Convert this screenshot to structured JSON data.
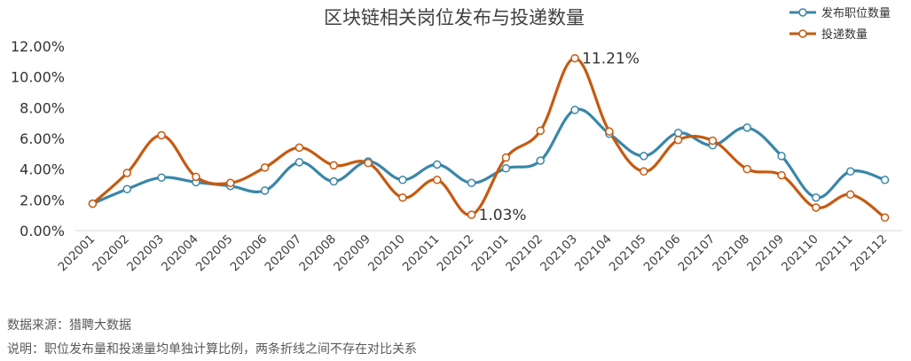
{
  "chart_data": {
    "type": "line",
    "title": "区块链相关岗位发布与投递数量",
    "categories": [
      "202001",
      "202002",
      "202003",
      "202004",
      "202005",
      "202006",
      "202007",
      "202008",
      "202009",
      "202010",
      "202011",
      "202012",
      "202101",
      "202102",
      "202103",
      "202104",
      "202105",
      "202106",
      "202107",
      "202108",
      "202109",
      "202110",
      "202111",
      "202112"
    ],
    "series": [
      {
        "name": "发布职位数量",
        "color": "#3a86a8",
        "values": [
          1.75,
          2.7,
          3.45,
          3.15,
          2.9,
          2.6,
          4.45,
          3.2,
          4.5,
          3.3,
          4.3,
          3.1,
          4.05,
          4.55,
          7.85,
          6.3,
          4.85,
          6.35,
          5.55,
          6.7,
          4.85,
          2.15,
          3.85,
          3.3
        ]
      },
      {
        "name": "投递数量",
        "color": "#c55a11",
        "values": [
          1.75,
          3.75,
          6.2,
          3.5,
          3.1,
          4.1,
          5.4,
          4.25,
          4.4,
          2.15,
          3.3,
          1.03,
          4.75,
          6.5,
          11.21,
          6.45,
          3.85,
          5.9,
          5.85,
          4.0,
          3.6,
          1.5,
          2.35,
          0.85
        ]
      }
    ],
    "y_ticks": [
      "0.00%",
      "2.00%",
      "4.00%",
      "6.00%",
      "8.00%",
      "10.00%",
      "12.00%"
    ],
    "ylim": [
      0,
      12
    ],
    "annotations": [
      {
        "text": "11.21%",
        "series": 1,
        "index": 14
      },
      {
        "text": "1.03%",
        "series": 1,
        "index": 11
      }
    ],
    "legend_position": "top-right",
    "grid": false
  },
  "notes": {
    "source": "数据来源：猎聘大数据",
    "description": "说明：职位发布量和投递量均单独计算比例，两条折线之间不存在对比关系"
  }
}
